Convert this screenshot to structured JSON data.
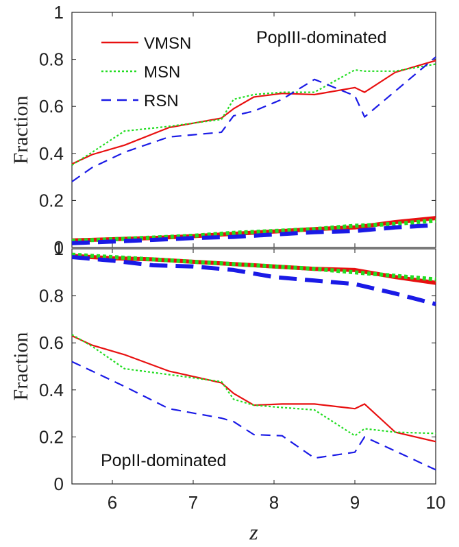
{
  "chart_data": [
    {
      "type": "line",
      "panel": "top",
      "annotation": "PopIII-dominated",
      "xlabel": "",
      "ylabel": "Fraction",
      "xlim": [
        5.5,
        10
      ],
      "ylim": [
        0,
        1
      ],
      "yticks": [
        "0",
        "0.2",
        "0.4",
        "0.6",
        "0.8",
        "1"
      ],
      "legend": {
        "placement": "top-left",
        "entries": [
          {
            "label": "VMSN",
            "color": "#e81010",
            "style": "solid"
          },
          {
            "label": "MSN",
            "color": "#22dd22",
            "style": "dotted"
          },
          {
            "label": "RSN",
            "color": "#1a1ae6",
            "style": "dashed"
          }
        ]
      },
      "series": [
        {
          "name": "VMSN",
          "weight": "thin",
          "color": "#e81010",
          "style": "solid",
          "x": [
            5.5,
            5.75,
            6.15,
            6.7,
            7.35,
            7.5,
            7.75,
            8.1,
            8.5,
            9.0,
            9.12,
            9.5,
            10.0
          ],
          "y": [
            0.355,
            0.395,
            0.435,
            0.51,
            0.55,
            0.59,
            0.64,
            0.655,
            0.65,
            0.68,
            0.66,
            0.745,
            0.795
          ]
        },
        {
          "name": "MSN",
          "weight": "thin",
          "color": "#22dd22",
          "style": "dotted",
          "x": [
            5.5,
            5.75,
            6.15,
            6.7,
            7.35,
            7.5,
            7.75,
            8.1,
            8.5,
            9.0,
            9.12,
            9.5,
            10.0
          ],
          "y": [
            0.35,
            0.405,
            0.495,
            0.515,
            0.545,
            0.63,
            0.65,
            0.66,
            0.66,
            0.755,
            0.75,
            0.75,
            0.78
          ]
        },
        {
          "name": "RSN",
          "weight": "thin",
          "color": "#1a1ae6",
          "style": "dashed",
          "x": [
            5.5,
            5.75,
            6.15,
            6.7,
            7.35,
            7.5,
            7.75,
            8.1,
            8.5,
            9.0,
            9.12,
            9.5,
            10.0
          ],
          "y": [
            0.28,
            0.34,
            0.405,
            0.47,
            0.49,
            0.56,
            0.58,
            0.63,
            0.715,
            0.645,
            0.555,
            0.665,
            0.81
          ]
        },
        {
          "name": "VMSN",
          "weight": "thick",
          "color": "#e81010",
          "style": "solid",
          "x": [
            5.5,
            6.0,
            6.5,
            7.0,
            7.5,
            8.0,
            8.5,
            9.0,
            9.5,
            10.0
          ],
          "y": [
            0.03,
            0.035,
            0.04,
            0.048,
            0.058,
            0.068,
            0.078,
            0.085,
            0.108,
            0.125
          ]
        },
        {
          "name": "MSN",
          "weight": "thick",
          "color": "#22dd22",
          "style": "dotted",
          "x": [
            5.5,
            6.0,
            6.5,
            7.0,
            7.5,
            8.0,
            8.5,
            9.0,
            9.5,
            10.0
          ],
          "y": [
            0.028,
            0.035,
            0.042,
            0.05,
            0.062,
            0.07,
            0.078,
            0.092,
            0.1,
            0.115
          ]
        },
        {
          "name": "RSN",
          "weight": "thick",
          "color": "#1a1ae6",
          "style": "dashed",
          "x": [
            5.5,
            6.0,
            6.5,
            7.0,
            7.5,
            8.0,
            8.5,
            9.0,
            9.5,
            10.0
          ],
          "y": [
            0.018,
            0.025,
            0.032,
            0.04,
            0.045,
            0.055,
            0.065,
            0.07,
            0.085,
            0.095
          ]
        }
      ]
    },
    {
      "type": "line",
      "panel": "bottom",
      "annotation": "PopII-dominated",
      "xlabel": "z",
      "ylabel": "Fraction",
      "xlim": [
        5.5,
        10
      ],
      "ylim": [
        0,
        1
      ],
      "xticks": [
        "6",
        "7",
        "8",
        "9",
        "10"
      ],
      "yticks": [
        "0",
        "0.2",
        "0.4",
        "0.6",
        "0.8",
        "1"
      ],
      "series": [
        {
          "name": "VMSN",
          "weight": "thin",
          "color": "#e81010",
          "style": "solid",
          "x": [
            5.5,
            5.75,
            6.15,
            6.7,
            7.35,
            7.5,
            7.75,
            8.1,
            8.5,
            9.0,
            9.12,
            9.5,
            10.0
          ],
          "y": [
            0.63,
            0.59,
            0.55,
            0.48,
            0.43,
            0.385,
            0.335,
            0.34,
            0.34,
            0.32,
            0.34,
            0.22,
            0.18
          ]
        },
        {
          "name": "MSN",
          "weight": "thin",
          "color": "#22dd22",
          "style": "dotted",
          "x": [
            5.5,
            5.75,
            6.15,
            6.7,
            7.35,
            7.5,
            7.75,
            8.1,
            8.5,
            9.0,
            9.12,
            9.5,
            10.0
          ],
          "y": [
            0.635,
            0.585,
            0.49,
            0.465,
            0.435,
            0.36,
            0.335,
            0.325,
            0.315,
            0.205,
            0.235,
            0.22,
            0.215
          ]
        },
        {
          "name": "RSN",
          "weight": "thin",
          "color": "#1a1ae6",
          "style": "dashed",
          "x": [
            5.5,
            5.75,
            6.15,
            6.7,
            7.35,
            7.5,
            7.75,
            8.1,
            8.5,
            9.0,
            9.12,
            9.5,
            10.0
          ],
          "y": [
            0.52,
            0.48,
            0.415,
            0.32,
            0.28,
            0.265,
            0.21,
            0.205,
            0.11,
            0.135,
            0.2,
            0.14,
            0.06
          ]
        },
        {
          "name": "VMSN",
          "weight": "thick",
          "color": "#e81010",
          "style": "solid",
          "x": [
            5.5,
            6.0,
            6.5,
            7.0,
            7.5,
            8.0,
            8.5,
            9.0,
            9.5,
            10.0
          ],
          "y": [
            0.97,
            0.96,
            0.955,
            0.945,
            0.935,
            0.925,
            0.915,
            0.91,
            0.88,
            0.855
          ]
        },
        {
          "name": "MSN",
          "weight": "thick",
          "color": "#22dd22",
          "style": "dotted",
          "x": [
            5.5,
            6.0,
            6.5,
            7.0,
            7.5,
            8.0,
            8.5,
            9.0,
            9.5,
            10.0
          ],
          "y": [
            0.975,
            0.965,
            0.955,
            0.945,
            0.935,
            0.925,
            0.915,
            0.9,
            0.885,
            0.87
          ]
        },
        {
          "name": "RSN",
          "weight": "thick",
          "color": "#1a1ae6",
          "style": "dashed",
          "x": [
            5.5,
            6.0,
            6.5,
            7.0,
            7.5,
            8.0,
            8.5,
            9.0,
            9.5,
            10.0
          ],
          "y": [
            0.965,
            0.95,
            0.93,
            0.925,
            0.91,
            0.88,
            0.865,
            0.85,
            0.81,
            0.765
          ]
        }
      ]
    }
  ]
}
